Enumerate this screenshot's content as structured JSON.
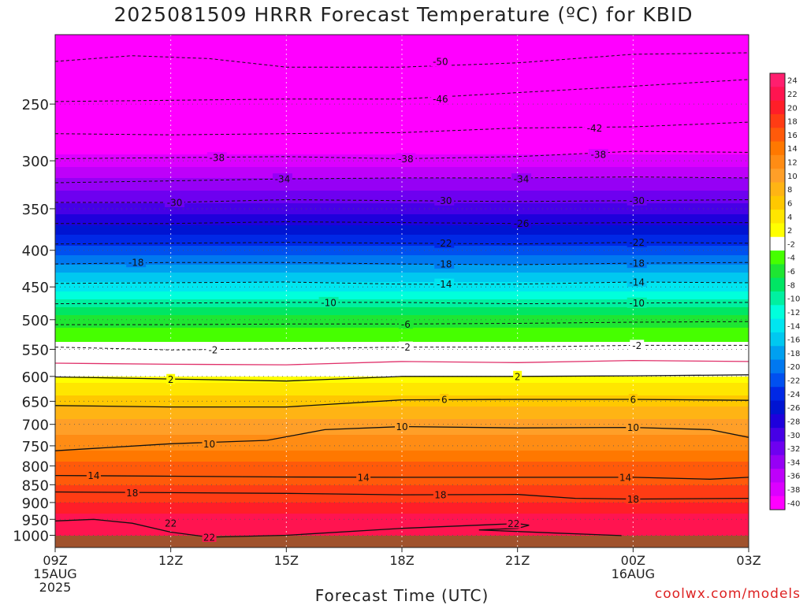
{
  "page": {
    "title": "2025081509 HRRR Forecast Temperature (ºC) for KBID",
    "xlabel": "Forecast Time (UTC)",
    "credit": "coolwx.com/models"
  },
  "chart_data": {
    "type": "heatmap",
    "title": "2025081509 HRRR Forecast Temperature (ºC) for KBID",
    "xlabel": "Forecast Time (UTC)",
    "ylabel": "",
    "y_scale": "log",
    "y_inverted": true,
    "xlim": [
      9,
      27
    ],
    "ylim": [
      1040,
      200
    ],
    "x_ticks": [
      {
        "x": 9,
        "labels": [
          "09Z",
          "15AUG",
          "2025"
        ]
      },
      {
        "x": 12,
        "labels": [
          "12Z"
        ]
      },
      {
        "x": 15,
        "labels": [
          "15Z"
        ]
      },
      {
        "x": 18,
        "labels": [
          "18Z"
        ]
      },
      {
        "x": 21,
        "labels": [
          "21Z"
        ]
      },
      {
        "x": 24,
        "labels": [
          "00Z",
          "16AUG"
        ]
      },
      {
        "x": 27,
        "labels": [
          "03Z"
        ]
      }
    ],
    "y_ticks": [
      250,
      300,
      350,
      400,
      450,
      500,
      550,
      600,
      650,
      700,
      750,
      800,
      850,
      900,
      950,
      1000
    ],
    "colorbar": {
      "labels": [
        "24",
        "22",
        "20",
        "18",
        "16",
        "14",
        "12",
        "10",
        "8",
        "6",
        "4",
        "2",
        "-2",
        "-4",
        "-6",
        "-8",
        "-10",
        "-12",
        "-14",
        "-16",
        "-18",
        "-20",
        "-22",
        "-24",
        "-26",
        "-28",
        "-30",
        "-32",
        "-34",
        "-36",
        "-38",
        "-40"
      ],
      "colors": [
        "#ff1e6e",
        "#ff1450",
        "#ff1e28",
        "#ff3c14",
        "#ff5a0a",
        "#ff7800",
        "#ff8c14",
        "#ff9f28",
        "#ffb414",
        "#ffc800",
        "#ffe600",
        "#ffff00",
        "#ffffff",
        "#46ff00",
        "#1ee632",
        "#00e664",
        "#00f0a0",
        "#00ffdc",
        "#00e6f0",
        "#00c8f0",
        "#00a0f0",
        "#0078f0",
        "#0050f0",
        "#0028e6",
        "#0014d2",
        "#1e00dc",
        "#4600e6",
        "#6e00f0",
        "#9600f5",
        "#be00fa",
        "#dc00ff",
        "#ff00ff"
      ]
    },
    "profile": {
      "levels": [
        200,
        250,
        300,
        350,
        375,
        400,
        450,
        500,
        550,
        575,
        600,
        650,
        700,
        750,
        800,
        850,
        900,
        950,
        1000,
        1040
      ],
      "temps": [
        -54,
        -46,
        -38,
        -30,
        -26,
        -22,
        -14,
        -6,
        -2,
        0,
        2,
        6,
        10,
        12,
        16,
        17,
        19,
        22,
        22,
        22
      ]
    },
    "contours": [
      {
        "value": -50,
        "dashed": true,
        "points": [
          [
            9,
            218
          ],
          [
            11,
            214
          ],
          [
            13,
            216
          ],
          [
            15,
            222
          ],
          [
            18,
            222
          ],
          [
            21,
            219
          ],
          [
            24,
            213
          ],
          [
            27,
            212
          ]
        ]
      },
      {
        "value": -46,
        "dashed": true,
        "points": [
          [
            9,
            248
          ],
          [
            12,
            247
          ],
          [
            15,
            246
          ],
          [
            18,
            246
          ],
          [
            21,
            241
          ],
          [
            24,
            236
          ],
          [
            27,
            231
          ]
        ]
      },
      {
        "value": -42,
        "dashed": true,
        "points": [
          [
            9,
            275
          ],
          [
            12,
            276
          ],
          [
            15,
            275
          ],
          [
            18,
            274
          ],
          [
            21,
            270
          ],
          [
            24,
            269
          ],
          [
            27,
            265
          ]
        ]
      },
      {
        "value": -38,
        "dashed": true,
        "points": [
          [
            9,
            298
          ],
          [
            12,
            297
          ],
          [
            15,
            296
          ],
          [
            18,
            298
          ],
          [
            21,
            296
          ],
          [
            24,
            291
          ],
          [
            27,
            292
          ]
        ]
      },
      {
        "value": -34,
        "dashed": true,
        "points": [
          [
            9,
            322
          ],
          [
            12,
            320
          ],
          [
            15,
            318
          ],
          [
            18,
            317
          ],
          [
            21,
            317
          ],
          [
            24,
            316
          ],
          [
            27,
            317
          ]
        ]
      },
      {
        "value": -30,
        "dashed": true,
        "points": [
          [
            9,
            343
          ],
          [
            12,
            343
          ],
          [
            15,
            340
          ],
          [
            18,
            341
          ],
          [
            21,
            342
          ],
          [
            24,
            341
          ],
          [
            27,
            340
          ]
        ]
      },
      {
        "value": -26,
        "dashed": true,
        "points": [
          [
            9,
            367
          ],
          [
            12,
            367
          ],
          [
            15,
            365
          ],
          [
            18,
            366
          ],
          [
            21,
            367
          ],
          [
            24,
            366
          ],
          [
            27,
            366
          ]
        ]
      },
      {
        "value": -22,
        "dashed": true,
        "points": [
          [
            9,
            392
          ],
          [
            12,
            391
          ],
          [
            15,
            390
          ],
          [
            18,
            391
          ],
          [
            21,
            392
          ],
          [
            24,
            390
          ],
          [
            27,
            391
          ]
        ]
      },
      {
        "value": -18,
        "dashed": true,
        "points": [
          [
            9,
            418
          ],
          [
            12,
            416
          ],
          [
            15,
            416
          ],
          [
            18,
            418
          ],
          [
            21,
            419
          ],
          [
            24,
            417
          ],
          [
            27,
            416
          ]
        ]
      },
      {
        "value": -14,
        "dashed": true,
        "points": [
          [
            9,
            445
          ],
          [
            12,
            444
          ],
          [
            15,
            443
          ],
          [
            18,
            446
          ],
          [
            21,
            446
          ],
          [
            24,
            443
          ],
          [
            27,
            444
          ]
        ]
      },
      {
        "value": -10,
        "dashed": true,
        "points": [
          [
            9,
            475
          ],
          [
            12,
            474
          ],
          [
            15,
            473
          ],
          [
            18,
            473
          ],
          [
            21,
            475
          ],
          [
            24,
            474
          ],
          [
            27,
            473
          ]
        ]
      },
      {
        "value": -6,
        "dashed": true,
        "points": [
          [
            9,
            508
          ],
          [
            12,
            508
          ],
          [
            15,
            507
          ],
          [
            18,
            507
          ],
          [
            21,
            506
          ],
          [
            24,
            504
          ],
          [
            27,
            503
          ]
        ]
      },
      {
        "value": -2,
        "dashed": true,
        "points": [
          [
            9,
            546
          ],
          [
            12,
            551
          ],
          [
            15,
            549
          ],
          [
            18,
            546
          ],
          [
            21,
            546
          ],
          [
            24,
            543
          ],
          [
            27,
            543
          ]
        ]
      },
      {
        "value": 0,
        "dashed": false,
        "color": "#e0306a",
        "points": [
          [
            9,
            575
          ],
          [
            12,
            577
          ],
          [
            15,
            578
          ],
          [
            18,
            572
          ],
          [
            21,
            574
          ],
          [
            24,
            570
          ],
          [
            27,
            572
          ]
        ]
      },
      {
        "value": 2,
        "dashed": false,
        "points": [
          [
            9,
            601
          ],
          [
            12,
            605
          ],
          [
            15,
            609
          ],
          [
            18,
            600
          ],
          [
            21,
            600
          ],
          [
            24,
            599
          ],
          [
            27,
            597
          ]
        ]
      },
      {
        "value": 6,
        "dashed": false,
        "points": [
          [
            9,
            659
          ],
          [
            12,
            662
          ],
          [
            15,
            662
          ],
          [
            18,
            647
          ],
          [
            21,
            646
          ],
          [
            24,
            646
          ],
          [
            27,
            648
          ]
        ]
      },
      {
        "value": 10,
        "dashed": false,
        "points": [
          [
            9,
            762
          ],
          [
            12,
            745
          ],
          [
            14.5,
            737
          ],
          [
            16,
            712
          ],
          [
            18,
            705
          ],
          [
            21,
            708
          ],
          [
            24,
            707
          ],
          [
            26,
            712
          ],
          [
            27,
            730
          ]
        ]
      },
      {
        "value": 14,
        "dashed": false,
        "points": [
          [
            9,
            825
          ],
          [
            12,
            827
          ],
          [
            15,
            829
          ],
          [
            18,
            830
          ],
          [
            21,
            830
          ],
          [
            24,
            830
          ],
          [
            26,
            835
          ],
          [
            27,
            830
          ]
        ]
      },
      {
        "value": 18,
        "dashed": false,
        "points": [
          [
            9,
            870
          ],
          [
            12,
            872
          ],
          [
            15,
            874
          ],
          [
            18,
            878
          ],
          [
            21,
            877
          ],
          [
            22.5,
            888
          ],
          [
            24,
            890
          ],
          [
            27,
            888
          ]
        ]
      },
      {
        "value": 22,
        "dashed": false,
        "points": [
          [
            9,
            955
          ],
          [
            10,
            950
          ],
          [
            11,
            962
          ],
          [
            12,
            990
          ],
          [
            13,
            1006
          ],
          [
            15,
            1000
          ],
          [
            18,
            978
          ],
          [
            21,
            963
          ],
          [
            21.3,
            968
          ],
          [
            21,
            978
          ],
          [
            20,
            983
          ],
          [
            22,
            993
          ],
          [
            23.7,
            1001
          ]
        ]
      }
    ],
    "contour_labels": [
      {
        "text": "-50",
        "x": 19.0,
        "y": 218
      },
      {
        "text": "-46",
        "x": 19.0,
        "y": 246
      },
      {
        "text": "-42",
        "x": 23.0,
        "y": 270
      },
      {
        "text": "-38",
        "x": 13.2,
        "y": 297
      },
      {
        "text": "-38",
        "x": 18.1,
        "y": 298
      },
      {
        "text": "-38",
        "x": 23.1,
        "y": 294
      },
      {
        "text": "-34",
        "x": 14.9,
        "y": 318
      },
      {
        "text": "-34",
        "x": 21.1,
        "y": 318
      },
      {
        "text": "-30",
        "x": 12.1,
        "y": 343
      },
      {
        "text": "-30",
        "x": 19.1,
        "y": 341
      },
      {
        "text": "-30",
        "x": 24.1,
        "y": 341
      },
      {
        "text": "-26",
        "x": 21.1,
        "y": 367
      },
      {
        "text": "-22",
        "x": 19.1,
        "y": 391
      },
      {
        "text": "-22",
        "x": 24.1,
        "y": 390
      },
      {
        "text": "-18",
        "x": 11.1,
        "y": 416
      },
      {
        "text": "-18",
        "x": 19.1,
        "y": 418
      },
      {
        "text": "-18",
        "x": 24.1,
        "y": 417
      },
      {
        "text": "-14",
        "x": 19.1,
        "y": 446
      },
      {
        "text": "-14",
        "x": 24.1,
        "y": 443
      },
      {
        "text": "-10",
        "x": 16.1,
        "y": 473
      },
      {
        "text": "-10",
        "x": 24.1,
        "y": 474
      },
      {
        "text": "-6",
        "x": 18.1,
        "y": 507
      },
      {
        "text": "-2",
        "x": 13.1,
        "y": 551
      },
      {
        "text": "-2",
        "x": 18.1,
        "y": 546
      },
      {
        "text": "-2",
        "x": 24.1,
        "y": 543
      },
      {
        "text": "2",
        "x": 12.0,
        "y": 606
      },
      {
        "text": "2",
        "x": 21.0,
        "y": 600
      },
      {
        "text": "6",
        "x": 19.1,
        "y": 646
      },
      {
        "text": "6",
        "x": 24.0,
        "y": 646
      },
      {
        "text": "10",
        "x": 13.0,
        "y": 745
      },
      {
        "text": "10",
        "x": 18.0,
        "y": 705
      },
      {
        "text": "10",
        "x": 24.0,
        "y": 707
      },
      {
        "text": "14",
        "x": 10.0,
        "y": 825
      },
      {
        "text": "14",
        "x": 17.0,
        "y": 830
      },
      {
        "text": "14",
        "x": 23.8,
        "y": 830
      },
      {
        "text": "18",
        "x": 11.0,
        "y": 872
      },
      {
        "text": "18",
        "x": 19.0,
        "y": 878
      },
      {
        "text": "18",
        "x": 24.0,
        "y": 890
      },
      {
        "text": "22",
        "x": 12.0,
        "y": 962
      },
      {
        "text": "22",
        "x": 13.0,
        "y": 1006
      },
      {
        "text": "22",
        "x": 20.9,
        "y": 963
      }
    ],
    "grid": {
      "x": true,
      "y": true
    },
    "ground_color": "#a0522d"
  }
}
